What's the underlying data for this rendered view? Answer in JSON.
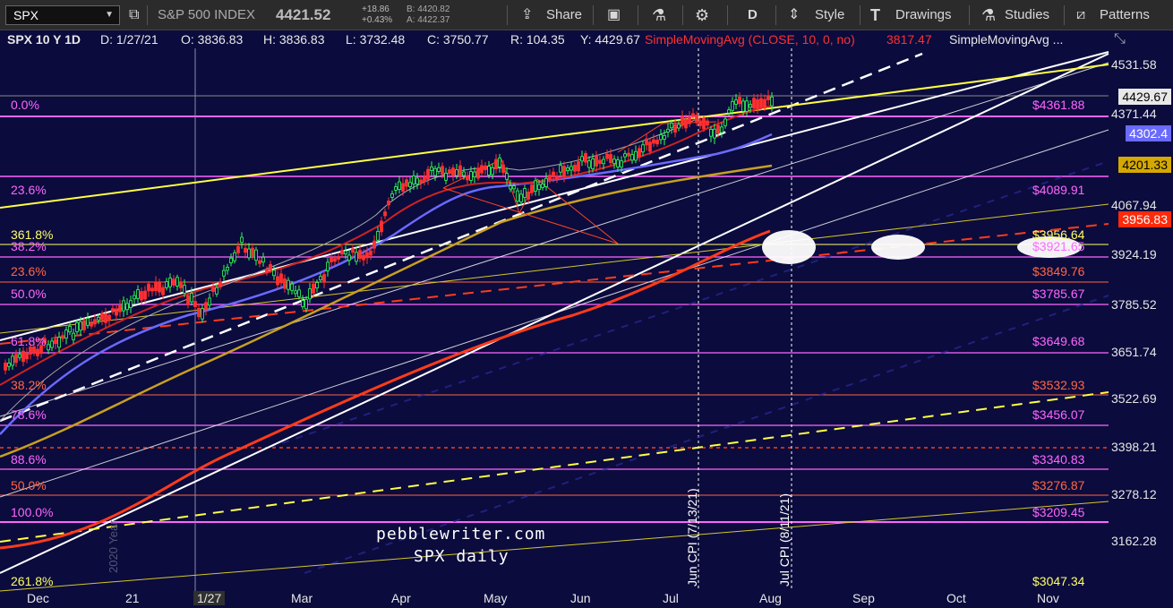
{
  "toolbar": {
    "symbol": "SPX",
    "name": "S&P 500 INDEX",
    "last": "4421.52",
    "change": "+18.86",
    "change_pct": "+0.43%",
    "bid": "B: 4420.82",
    "ask": "A: 4422.37",
    "share": "Share",
    "period": "D",
    "style": "Style",
    "drawings": "Drawings",
    "studies": "Studies",
    "patterns": "Patterns"
  },
  "info": {
    "title": "SPX 10 Y 1D",
    "date": "D: 1/27/21",
    "open": "O: 3836.83",
    "high": "H: 3836.83",
    "low": "L: 3732.48",
    "close": "C: 3750.77",
    "range": "R: 104.35",
    "y": "Y: 4429.67",
    "sma1": "SimpleMovingAvg (CLOSE, 10, 0, no)",
    "sma1_val": "3817.47",
    "sma2": "SimpleMovingAvg ..."
  },
  "price_axis": [
    "4531.58",
    "4371.44",
    "4067.94",
    "3924.19",
    "3785.52",
    "3651.74",
    "3522.69",
    "3398.21",
    "3278.12",
    "3162.28"
  ],
  "price_boxes": {
    "last": "4429.67",
    "sma_blue": "4302.4",
    "sma_gold": "4201.33",
    "sma_red": "3956.83"
  },
  "x_axis": [
    "Dec",
    "21",
    "1/27",
    "Mar",
    "Apr",
    "May",
    "Jun",
    "Jul",
    "Aug",
    "Sep",
    "Oct",
    "Nov"
  ],
  "fib_left": [
    {
      "label": "0.0%",
      "color": "#ff66ff"
    },
    {
      "label": "23.6%",
      "color": "#ff66ff"
    },
    {
      "label": "361.8%",
      "color": "#ffff66"
    },
    {
      "label": "38.2%",
      "color": "#ff66ff"
    },
    {
      "label": "23.6%",
      "color": "#ff6644"
    },
    {
      "label": "50.0%",
      "color": "#ff66ff"
    },
    {
      "label": "61.8%",
      "color": "#ff66ff"
    },
    {
      "label": "38.2%",
      "color": "#ff6644"
    },
    {
      "label": "78.6%",
      "color": "#ff66ff"
    },
    {
      "label": "88.6%",
      "color": "#ff66ff"
    },
    {
      "label": "50.0%",
      "color": "#ff6644"
    },
    {
      "label": "100.0%",
      "color": "#ff66ff"
    },
    {
      "label": "261.8%",
      "color": "#ffff66"
    }
  ],
  "fib_right": [
    {
      "label": "$4361.88",
      "color": "#ff66ff"
    },
    {
      "label": "$4089.91",
      "color": "#ff66ff"
    },
    {
      "label": "$3956.64",
      "color": "#ffff66"
    },
    {
      "label": "$3921.65",
      "color": "#ff66ff"
    },
    {
      "label": "$3849.76",
      "color": "#ff6644"
    },
    {
      "label": "$3785.67",
      "color": "#ff66ff"
    },
    {
      "label": "$3649.68",
      "color": "#ff66ff"
    },
    {
      "label": "$3532.93",
      "color": "#ff6644"
    },
    {
      "label": "$3456.07",
      "color": "#ff66ff"
    },
    {
      "label": "$3340.83",
      "color": "#ff66ff"
    },
    {
      "label": "$3276.87",
      "color": "#ff6644"
    },
    {
      "label": "$3209.45",
      "color": "#ff66ff"
    },
    {
      "label": "$3047.34",
      "color": "#ffff66"
    }
  ],
  "annotations": {
    "jun_cpi": "Jun CPI (7/13/21)",
    "jul_cpi": "Jul CPI (8/11/21)",
    "year_mark": "2020 Year",
    "watermark1": "pebblewriter.com",
    "watermark2": "SPX daily"
  },
  "colors": {
    "bg": "#0b0b3d",
    "yellow": "#ffff44",
    "red": "#ff3b1a",
    "magenta": "#ff66ff",
    "blue": "#6a6aff",
    "gold": "#c8a020"
  }
}
